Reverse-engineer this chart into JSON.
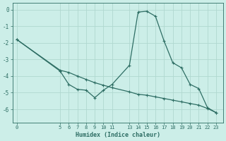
{
  "xlabel": "Humidex (Indice chaleur)",
  "bg_color": "#cceee8",
  "grid_color": "#b0d8d0",
  "line_color": "#2e6e64",
  "line1_x": [
    0,
    5,
    6,
    7,
    8,
    9,
    10,
    11,
    13,
    14,
    15,
    16,
    17,
    18,
    19,
    20,
    21,
    22,
    23
  ],
  "line1_y": [
    -1.8,
    -3.7,
    -4.5,
    -4.8,
    -4.85,
    -5.3,
    -4.85,
    -4.5,
    -3.35,
    -0.15,
    -0.1,
    -0.4,
    -1.9,
    -3.2,
    -3.5,
    -4.5,
    -4.75,
    -5.9,
    -6.2
  ],
  "line2_x": [
    0,
    5,
    6,
    7,
    8,
    9,
    10,
    11,
    13,
    14,
    15,
    16,
    17,
    18,
    19,
    20,
    21,
    22,
    23
  ],
  "line2_y": [
    -1.8,
    -3.65,
    -3.78,
    -4.0,
    -4.2,
    -4.4,
    -4.55,
    -4.7,
    -4.95,
    -5.1,
    -5.15,
    -5.25,
    -5.35,
    -5.45,
    -5.55,
    -5.65,
    -5.75,
    -5.95,
    -6.2
  ],
  "xticks": [
    0,
    5,
    6,
    7,
    8,
    9,
    10,
    11,
    13,
    14,
    15,
    16,
    17,
    18,
    19,
    20,
    21,
    22,
    23
  ],
  "yticks": [
    0,
    -1,
    -2,
    -3,
    -4,
    -5,
    -6
  ],
  "ylim": [
    -6.8,
    0.4
  ],
  "xlim": [
    -0.5,
    23.8
  ]
}
